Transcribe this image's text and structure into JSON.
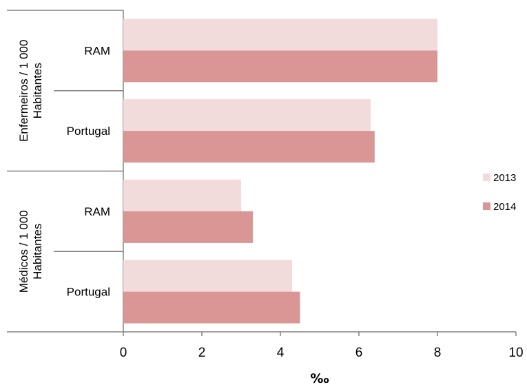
{
  "chart_data": {
    "type": "bar",
    "orientation": "horizontal",
    "xlabel": "‰",
    "xlim": [
      0,
      10
    ],
    "xticks": [
      0,
      2,
      4,
      6,
      8,
      10
    ],
    "legend_position": "right",
    "groups": [
      {
        "label": "Enfermeiros / 1 000 Habitantes",
        "label_lines": [
          "Enfermeiros / 1 000",
          "Habitantes"
        ]
      },
      {
        "label": "Médicos / 1 000 Habitantes",
        "label_lines": [
          "Médicos / 1 000",
          "Habitantes"
        ]
      }
    ],
    "categories": [
      {
        "group": 0,
        "label": "RAM"
      },
      {
        "group": 0,
        "label": "Portugal"
      },
      {
        "group": 1,
        "label": "RAM"
      },
      {
        "group": 1,
        "label": "Portugal"
      }
    ],
    "series": [
      {
        "name": "2013",
        "color": "#f2dcdb",
        "values": [
          8.0,
          6.3,
          3.0,
          4.3
        ]
      },
      {
        "name": "2014",
        "color": "#d99694",
        "values": [
          8.0,
          6.4,
          3.3,
          4.5
        ]
      }
    ]
  }
}
